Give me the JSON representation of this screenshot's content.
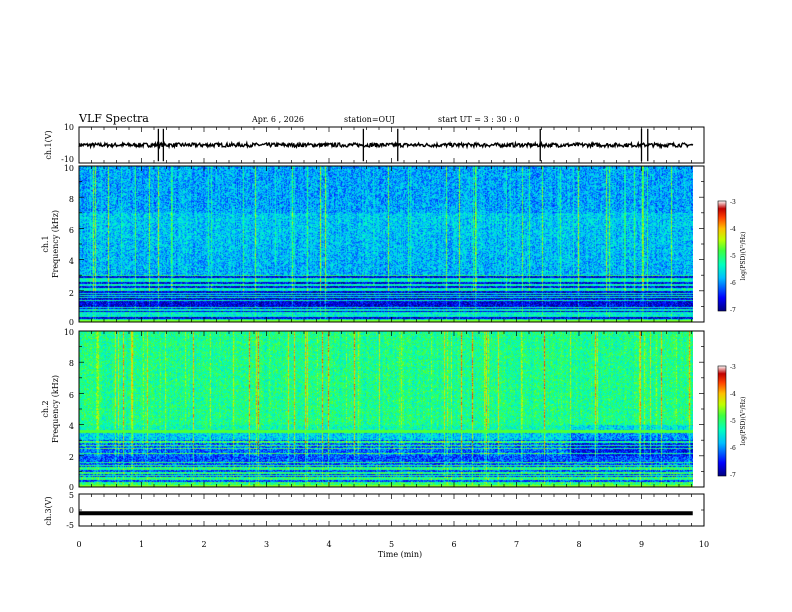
{
  "header": {
    "title": "VLF Spectra",
    "date": "Apr. 6 , 2026",
    "station": "station=OUJ",
    "start_ut": "start UT =  3 : 30 : 0"
  },
  "colors": {
    "spectrogram_scale": [
      "#00007f",
      "#0000ff",
      "#00bfff",
      "#00ffbf",
      "#3fff3f",
      "#bfff00",
      "#ffbf00",
      "#ff4000",
      "#c00000",
      "#ffffff"
    ]
  },
  "chart_data": [
    {
      "type": "line",
      "panel": "ch1-waveform",
      "ylabel": "ch.1(V)",
      "ylim": [
        -10,
        10
      ],
      "y_ticks": [
        "10",
        "-10"
      ],
      "xlim": [
        0,
        10
      ],
      "baseline": 0,
      "spike_times_min": [
        1.27,
        1.35,
        4.55,
        5.1,
        7.38,
        9.0,
        9.1
      ]
    },
    {
      "type": "heatmap",
      "panel": "ch1-spectrogram",
      "ylabel_lines": [
        "ch.1",
        "Frequency (kHz)"
      ],
      "ylim": [
        0,
        10
      ],
      "y_ticks": [
        "10",
        "8",
        "6",
        "4",
        "2",
        "0"
      ],
      "xlim": [
        0,
        9.82
      ],
      "colorbar": {
        "label": "log(PSD)(V²/Hz)",
        "ticks": [
          "-3",
          "-4",
          "-5",
          "-6",
          "-7"
        ],
        "range": [
          -7,
          -3
        ]
      }
    },
    {
      "type": "heatmap",
      "panel": "ch2-spectrogram",
      "ylabel_lines": [
        "ch.2",
        "Frequency (kHz)"
      ],
      "ylim": [
        0,
        10
      ],
      "y_ticks": [
        "10",
        "8",
        "6",
        "4",
        "2",
        "0"
      ],
      "xlim": [
        0,
        9.82
      ],
      "colorbar": {
        "label": "log(PSD)(V²/Hz)",
        "ticks": [
          "-3",
          "-4",
          "-5",
          "-6",
          "-7"
        ],
        "range": [
          -7,
          -3
        ]
      }
    },
    {
      "type": "line",
      "panel": "ch3-waveform",
      "ylabel": "ch.3(V)",
      "ylim": [
        -5,
        5
      ],
      "y_ticks": [
        "5",
        "0",
        "-5"
      ],
      "xlim": [
        0,
        10
      ],
      "constant_value": -1
    }
  ],
  "x_axis": {
    "label": "Time (min)",
    "ticks": [
      "0",
      "1",
      "2",
      "3",
      "4",
      "5",
      "6",
      "7",
      "8",
      "9",
      "10"
    ]
  }
}
